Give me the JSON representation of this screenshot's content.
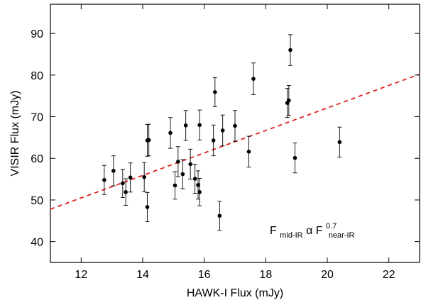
{
  "chart_data": {
    "type": "scatter",
    "xlabel": "HAWK-I Flux (mJy)",
    "ylabel": "VISIR Flux (mJy)",
    "xlim": [
      11,
      23
    ],
    "ylim": [
      35,
      97
    ],
    "xticks": [
      12,
      14,
      16,
      18,
      20,
      22
    ],
    "yticks": [
      40,
      50,
      60,
      70,
      80,
      90
    ],
    "grid": false,
    "annotation": {
      "base1": "F",
      "sub1": "mid-IR",
      "alpha": " α ",
      "base2": "F",
      "sup2": "0.7",
      "sub2": "near-IR"
    },
    "fit_line": {
      "style": "dashed",
      "color": "#e0201c",
      "x": [
        11,
        23
      ],
      "y": [
        47.8,
        80.2
      ]
    },
    "points": [
      {
        "x": 12.75,
        "y": 54.8,
        "err": 3.5
      },
      {
        "x": 13.05,
        "y": 57.0,
        "err": 3.6
      },
      {
        "x": 13.35,
        "y": 54.0,
        "err": 3.4
      },
      {
        "x": 13.45,
        "y": 51.9,
        "err": 3.2
      },
      {
        "x": 13.6,
        "y": 55.4,
        "err": 3.5
      },
      {
        "x": 14.05,
        "y": 55.5,
        "err": 3.5
      },
      {
        "x": 14.15,
        "y": 64.3,
        "err": 3.8
      },
      {
        "x": 14.2,
        "y": 64.4,
        "err": 3.8
      },
      {
        "x": 14.15,
        "y": 48.3,
        "err": 3.5
      },
      {
        "x": 14.9,
        "y": 66.1,
        "err": 3.7
      },
      {
        "x": 15.05,
        "y": 53.5,
        "err": 3.3
      },
      {
        "x": 15.15,
        "y": 59.2,
        "err": 3.6
      },
      {
        "x": 15.3,
        "y": 56.2,
        "err": 3.5
      },
      {
        "x": 15.4,
        "y": 67.9,
        "err": 3.6
      },
      {
        "x": 15.55,
        "y": 58.6,
        "err": 3.6
      },
      {
        "x": 15.7,
        "y": 55.1,
        "err": 3.5
      },
      {
        "x": 15.8,
        "y": 53.6,
        "err": 3.4
      },
      {
        "x": 15.85,
        "y": 51.9,
        "err": 3.3
      },
      {
        "x": 15.85,
        "y": 68.0,
        "err": 3.6
      },
      {
        "x": 16.3,
        "y": 64.3,
        "err": 3.7
      },
      {
        "x": 16.35,
        "y": 75.9,
        "err": 3.5
      },
      {
        "x": 16.5,
        "y": 46.2,
        "err": 3.5
      },
      {
        "x": 16.6,
        "y": 66.7,
        "err": 3.7
      },
      {
        "x": 17.0,
        "y": 67.8,
        "err": 3.7
      },
      {
        "x": 17.45,
        "y": 61.6,
        "err": 3.7
      },
      {
        "x": 17.6,
        "y": 79.1,
        "err": 3.8
      },
      {
        "x": 18.7,
        "y": 73.3,
        "err": 3.5
      },
      {
        "x": 18.75,
        "y": 73.9,
        "err": 3.6
      },
      {
        "x": 18.8,
        "y": 86.0,
        "err": 3.7
      },
      {
        "x": 18.95,
        "y": 60.1,
        "err": 3.6
      },
      {
        "x": 20.4,
        "y": 63.9,
        "err": 3.6
      }
    ]
  }
}
